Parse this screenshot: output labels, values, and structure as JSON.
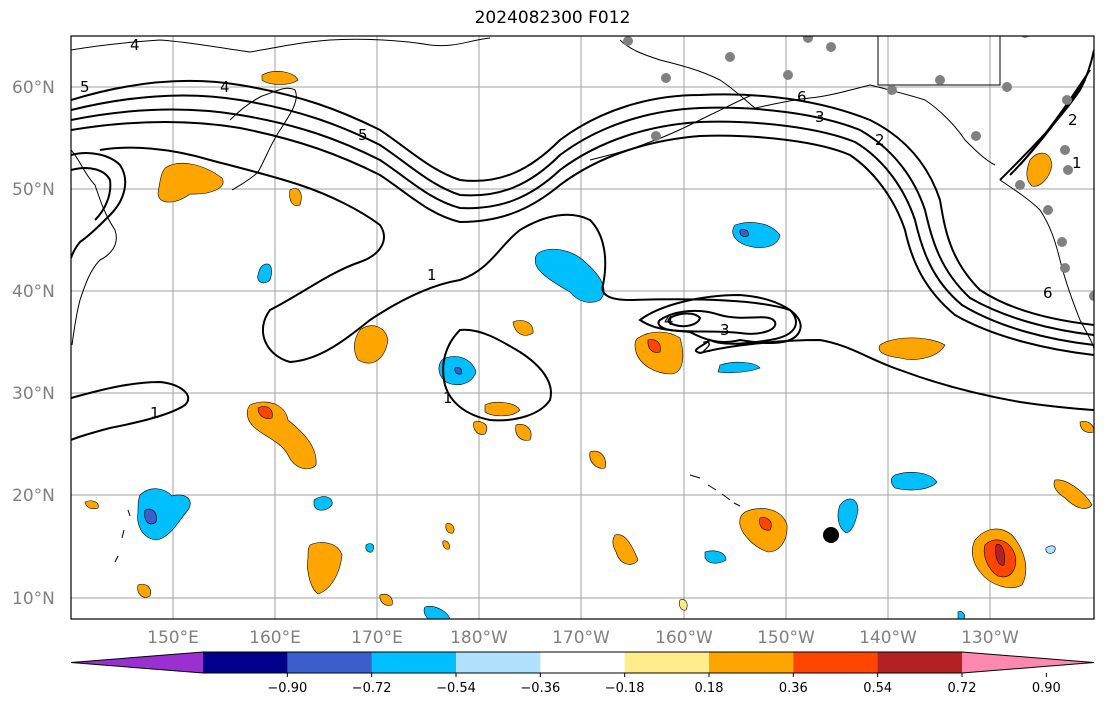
{
  "title": "2024082300 F012",
  "map": {
    "lat_labels": [
      "60°N",
      "50°N",
      "40°N",
      "30°N",
      "20°N",
      "10°N"
    ],
    "lon_labels": [
      "150°E",
      "160°E",
      "170°E",
      "180°W",
      "170°W",
      "160°W",
      "150°W",
      "140°W",
      "130°W"
    ],
    "contour_labels": [
      "4",
      "5",
      "4",
      "5",
      "6",
      "3",
      "2",
      "1",
      "1",
      "1",
      "4",
      "3",
      "2",
      "2",
      "1",
      "6"
    ],
    "colors": {
      "background": "#ffffff",
      "gridline": "#a0a0a0",
      "coast": "#000000",
      "contour": "#000000",
      "station": "#808080"
    }
  },
  "colorbar": {
    "ticks": [
      "−0.90",
      "−0.72",
      "−0.54",
      "−0.36",
      "−0.18",
      "0.18",
      "0.36",
      "0.54",
      "0.72",
      "0.90"
    ],
    "colors": [
      "#9b30d0",
      "#00008b",
      "#3a5fcd",
      "#00bfff",
      "#b0e2ff",
      "#ffffff",
      "#ffec8b",
      "#ffa500",
      "#ff4500",
      "#b22222",
      "#ff88b0"
    ]
  }
}
